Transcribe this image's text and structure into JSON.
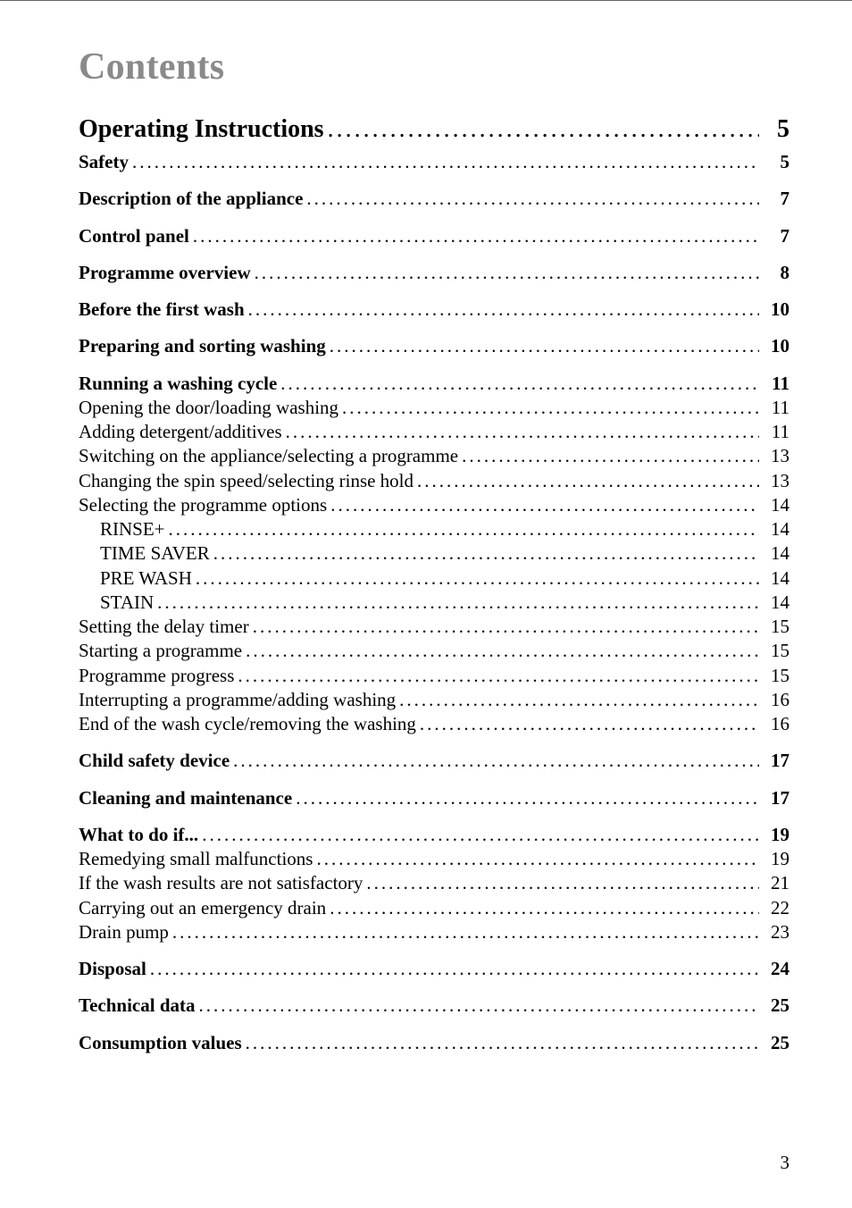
{
  "title": "Contents",
  "dots": "..........................................................................................................",
  "page_number": "3",
  "colors": {
    "title": "#8a8a8a",
    "text": "#000000",
    "rule": "#666666",
    "background": "#ffffff"
  },
  "typography": {
    "title_fontsize": 42,
    "section_fontsize": 28,
    "body_fontsize": 21,
    "font_family": "Georgia, 'Times New Roman', serif"
  },
  "entries": [
    {
      "label": "Operating Instructions",
      "page": "5",
      "level": "section",
      "first": true
    },
    {
      "label": "Safety",
      "page": "5",
      "level": "bold"
    },
    {
      "label": "Description of the appliance",
      "page": "7",
      "level": "bold",
      "gap": true
    },
    {
      "label": "Control panel",
      "page": "7",
      "level": "bold",
      "gap": true
    },
    {
      "label": "Programme overview",
      "page": "8",
      "level": "bold",
      "gap": true
    },
    {
      "label": "Before the first wash",
      "page": "10",
      "level": "bold",
      "gap": true
    },
    {
      "label": "Preparing and sorting washing",
      "page": "10",
      "level": "bold",
      "gap": true
    },
    {
      "label": "Running a washing cycle",
      "page": "11",
      "level": "bold",
      "gap": true
    },
    {
      "label": "Opening the door/loading washing",
      "page": "11",
      "level": "sub"
    },
    {
      "label": "Adding detergent/additives",
      "page": "11",
      "level": "sub"
    },
    {
      "label": "Switching on the appliance/selecting a programme",
      "page": "13",
      "level": "sub"
    },
    {
      "label": "Changing the spin speed/selecting rinse hold",
      "page": "13",
      "level": "sub"
    },
    {
      "label": "Selecting the programme options",
      "page": "14",
      "level": "sub"
    },
    {
      "label": "RINSE+",
      "page": "14",
      "level": "sub2"
    },
    {
      "label": "TIME SAVER",
      "page": "14",
      "level": "sub2"
    },
    {
      "label": "PRE WASH",
      "page": "14",
      "level": "sub2"
    },
    {
      "label": "STAIN",
      "page": "14",
      "level": "sub2"
    },
    {
      "label": "Setting the delay timer",
      "page": "15",
      "level": "sub"
    },
    {
      "label": "Starting a programme",
      "page": "15",
      "level": "sub"
    },
    {
      "label": "Programme progress",
      "page": "15",
      "level": "sub"
    },
    {
      "label": "Interrupting a programme/adding washing",
      "page": "16",
      "level": "sub"
    },
    {
      "label": "End of the wash cycle/removing the washing",
      "page": "16",
      "level": "sub"
    },
    {
      "label": "Child safety device",
      "page": "17",
      "level": "bold",
      "gap": true
    },
    {
      "label": "Cleaning and maintenance",
      "page": "17",
      "level": "bold",
      "gap": true
    },
    {
      "label": "What to do if...",
      "page": "19",
      "level": "bold",
      "gap": true
    },
    {
      "label": "Remedying small malfunctions",
      "page": "19",
      "level": "sub"
    },
    {
      "label": "If the wash results are not satisfactory",
      "page": "21",
      "level": "sub"
    },
    {
      "label": "Carrying out an emergency drain",
      "page": "22",
      "level": "sub"
    },
    {
      "label": "Drain pump",
      "page": "23",
      "level": "sub"
    },
    {
      "label": "Disposal",
      "page": "24",
      "level": "bold",
      "gap": true
    },
    {
      "label": "Technical data",
      "page": "25",
      "level": "bold",
      "gap": true
    },
    {
      "label": "Consumption values",
      "page": "25",
      "level": "bold",
      "gap": true
    }
  ]
}
